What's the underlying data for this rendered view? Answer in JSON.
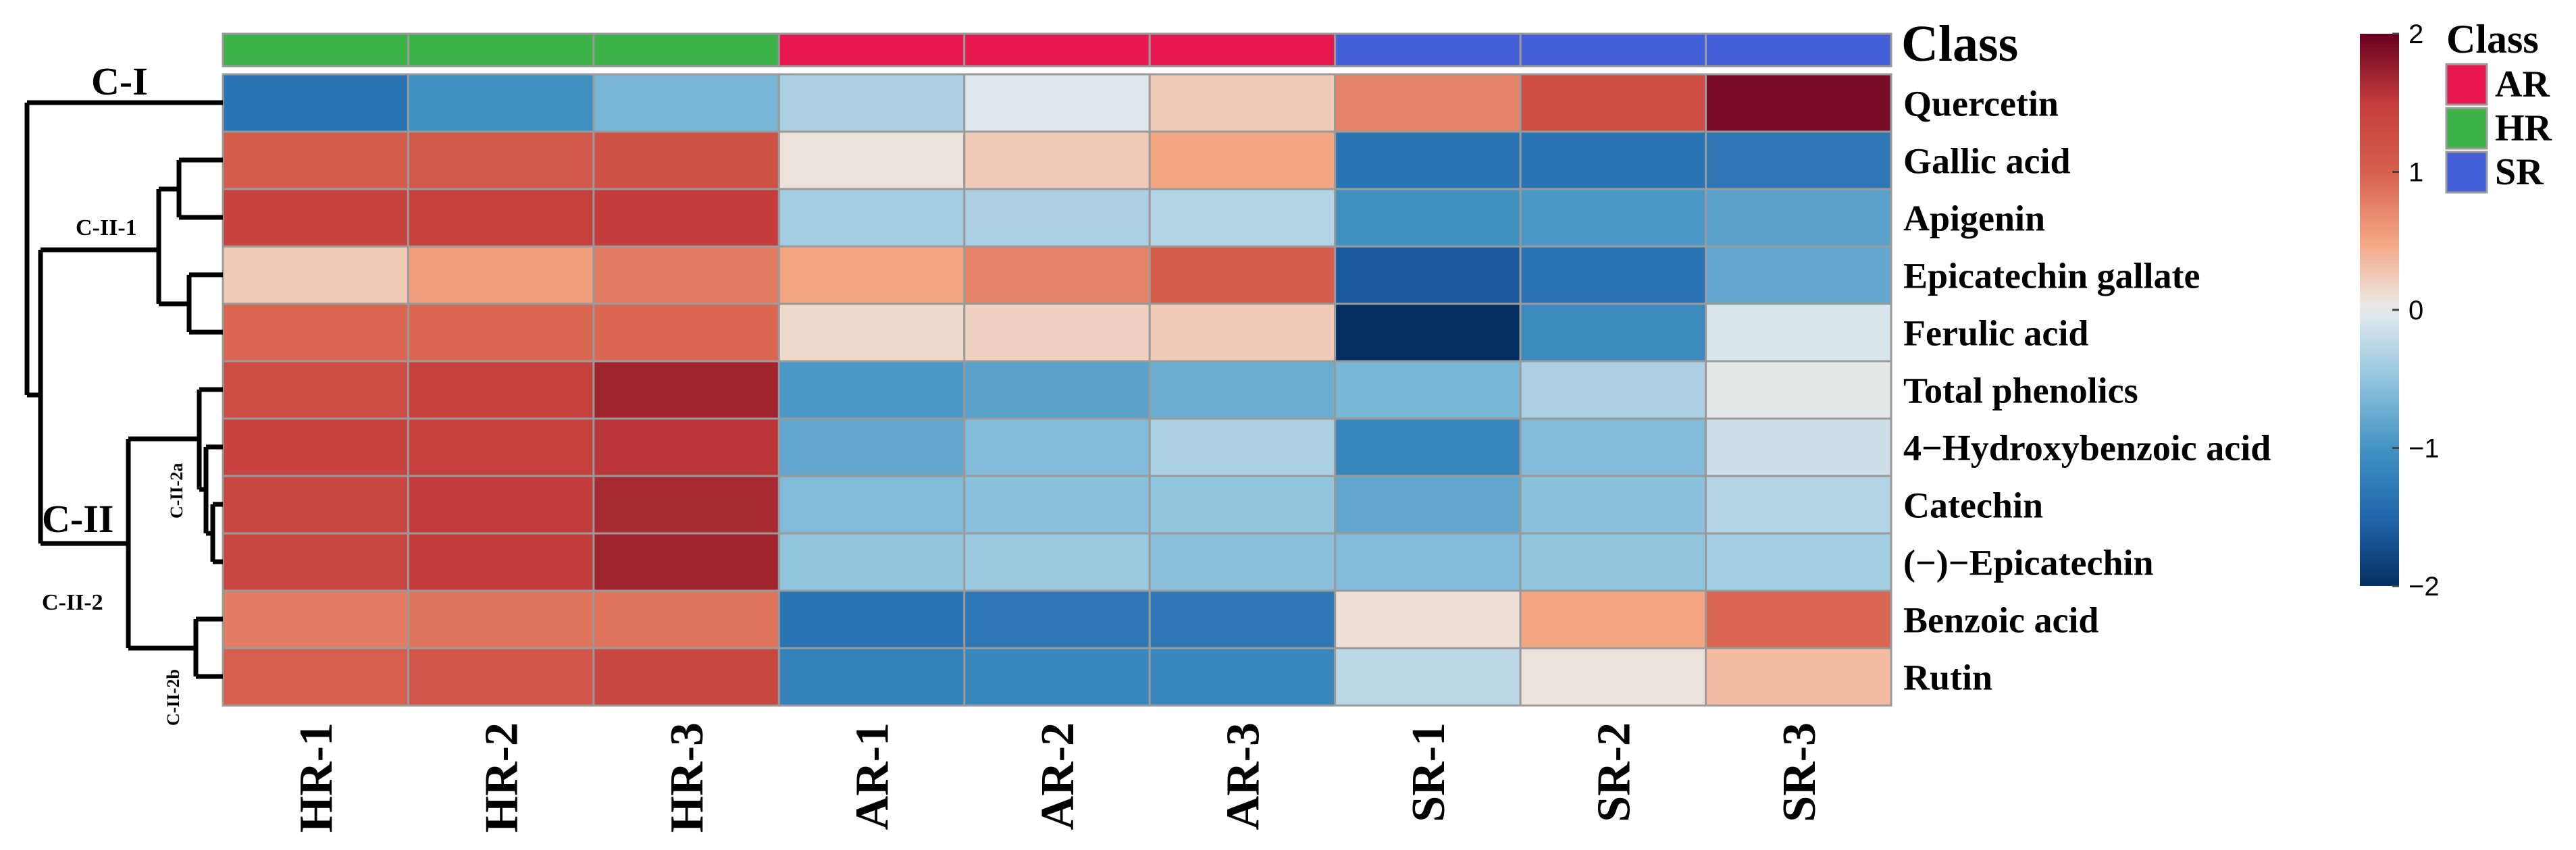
{
  "chart_data": {
    "type": "heatmap",
    "title": "",
    "columns": [
      "HR-1",
      "HR-2",
      "HR-3",
      "AR-1",
      "AR-2",
      "AR-3",
      "SR-1",
      "SR-2",
      "SR-3"
    ],
    "column_class": [
      "HR",
      "HR",
      "HR",
      "AR",
      "AR",
      "AR",
      "SR",
      "SR",
      "SR"
    ],
    "rows": [
      "Quercetin",
      "Gallic acid",
      "Apigenin",
      "Epicatechin gallate",
      "Ferulic acid",
      "Total phenolics",
      "4−Hydroxybenzoic acid",
      "Catechin",
      "(−)−Epicatechin",
      "Benzoic acid",
      "Rutin"
    ],
    "values": [
      [
        -1.35,
        -1.05,
        -0.65,
        -0.35,
        -0.05,
        0.25,
        0.75,
        1.25,
        1.9
      ],
      [
        1.05,
        1.1,
        1.2,
        0.08,
        0.25,
        0.5,
        -1.35,
        -1.35,
        -1.3
      ],
      [
        1.4,
        1.45,
        1.5,
        -0.4,
        -0.35,
        -0.3,
        -1.05,
        -0.95,
        -0.85
      ],
      [
        0.25,
        0.55,
        0.8,
        0.5,
        0.75,
        1.05,
        -1.6,
        -1.35,
        -0.8
      ],
      [
        0.95,
        0.95,
        0.95,
        0.15,
        0.2,
        0.25,
        -2.0,
        -1.1,
        -0.08
      ],
      [
        1.25,
        1.45,
        1.7,
        -0.95,
        -0.85,
        -0.75,
        -0.65,
        -0.35,
        0.0
      ],
      [
        1.4,
        1.45,
        1.55,
        -0.8,
        -0.6,
        -0.35,
        -1.15,
        -0.6,
        -0.15
      ],
      [
        1.35,
        1.5,
        1.65,
        -0.6,
        -0.55,
        -0.5,
        -0.8,
        -0.55,
        -0.3
      ],
      [
        1.35,
        1.5,
        1.7,
        -0.5,
        -0.45,
        -0.55,
        -0.6,
        -0.5,
        -0.4
      ],
      [
        0.8,
        0.85,
        0.85,
        -1.35,
        -1.3,
        -1.3,
        0.1,
        0.5,
        0.95
      ],
      [
        1.0,
        1.15,
        1.35,
        -1.2,
        -1.15,
        -1.15,
        -0.25,
        0.08,
        0.35
      ]
    ],
    "color_scale": {
      "min": -2,
      "max": 2,
      "ticks": [
        "2",
        "1",
        "0",
        "−1",
        "−2"
      ],
      "tick_values": [
        2,
        1,
        0,
        -1,
        -2
      ],
      "stops": [
        {
          "v": -2,
          "color": "#053061"
        },
        {
          "v": -1.5,
          "color": "#2166ac"
        },
        {
          "v": -1,
          "color": "#4393c3"
        },
        {
          "v": -0.5,
          "color": "#92c5de"
        },
        {
          "v": -0.05,
          "color": "#dde7ec"
        },
        {
          "v": 0.05,
          "color": "#ede6e1"
        },
        {
          "v": 0.5,
          "color": "#f4a582"
        },
        {
          "v": 1,
          "color": "#d6604d"
        },
        {
          "v": 1.5,
          "color": "#c43c3c"
        },
        {
          "v": 2,
          "color": "#67001f"
        }
      ]
    },
    "class_annotation": {
      "title": "Class",
      "legend_title": "Class",
      "legend": [
        {
          "name": "AR",
          "color": "#e8174f"
        },
        {
          "name": "HR",
          "color": "#3db34a"
        },
        {
          "name": "SR",
          "color": "#4460d8"
        }
      ]
    },
    "dendrogram_labels": [
      "C-I",
      "C-II",
      "C-II-1",
      "C-II-2",
      "C-II-2a",
      "C-II-2b"
    ]
  }
}
